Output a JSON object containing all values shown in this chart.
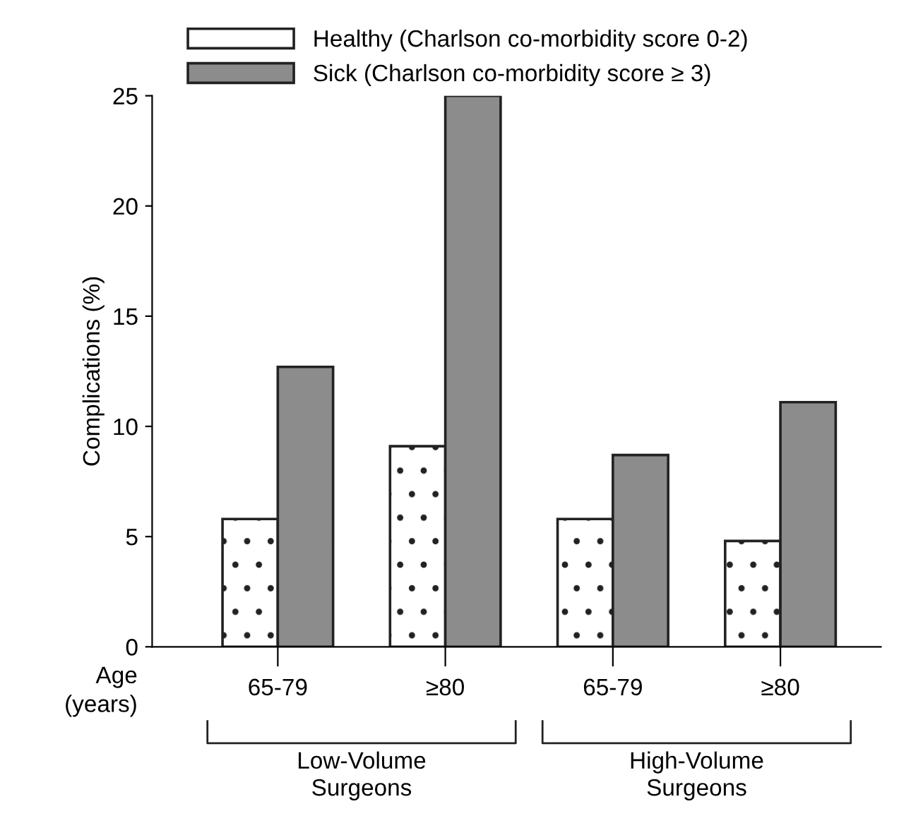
{
  "chart_data": {
    "type": "bar",
    "categories": [
      "65-79",
      "≥80",
      "65-79",
      "≥80"
    ],
    "xlabel": "Age\n(years)",
    "ylabel": "Complications (%)",
    "series": [
      {
        "name": "Healthy (Charlson co-morbidity score 0-2)",
        "color": "#ffffff",
        "values": [
          5.8,
          9.1,
          5.8,
          4.8
        ]
      },
      {
        "name": "Sick (Charlson co-morbidity score ≥ 3)",
        "color": "#8c8c8c",
        "values": [
          12.7,
          25,
          8.7,
          11.1
        ]
      }
    ],
    "ylim": [
      0,
      25
    ],
    "yticks": [
      0,
      5,
      10,
      15,
      20,
      25
    ],
    "grid": false,
    "legend": "top",
    "annotations": [
      "Low-Volume\nSurgeons",
      "High-Volume\nSurgeons"
    ]
  }
}
